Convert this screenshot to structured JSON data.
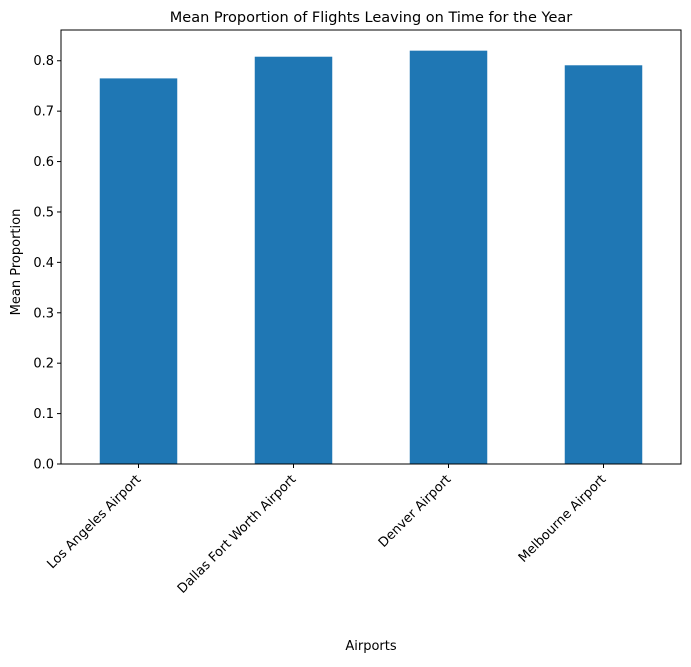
{
  "chart_data": {
    "type": "bar",
    "title": "Mean Proportion of Flights Leaving on Time for the Year",
    "xlabel": "Airports",
    "ylabel": "Mean Proportion",
    "categories": [
      "Los Angeles Airport",
      "Dallas Fort Worth Airport",
      "Denver Airport",
      "Melbourne Airport"
    ],
    "values": [
      0.765,
      0.808,
      0.82,
      0.791
    ],
    "ylim": [
      0,
      0.861
    ],
    "yticks": [
      "0.0",
      "0.1",
      "0.2",
      "0.3",
      "0.4",
      "0.5",
      "0.6",
      "0.7",
      "0.8"
    ],
    "bar_color": "#1f77b4",
    "grid": false,
    "legend": false
  }
}
